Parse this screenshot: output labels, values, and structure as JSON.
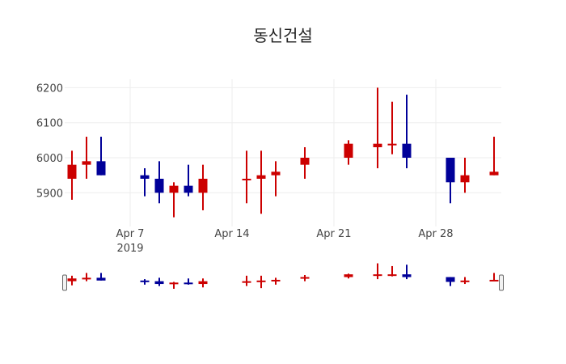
{
  "title": "동신건설",
  "colors": {
    "increasing": "#cc0000",
    "decreasing": "#000099",
    "grid": "#eeeeee"
  },
  "chart_data": {
    "type": "candlestick",
    "title": "동신건설",
    "xlabel": "",
    "ylabel": "",
    "ylim": [
      5810,
      6220
    ],
    "yticks": [
      5900,
      6000,
      6100,
      6200
    ],
    "xticks": [
      {
        "date": "2019-04-07",
        "label": "Apr 7",
        "sublabel": "2019"
      },
      {
        "date": "2019-04-14",
        "label": "Apr 14"
      },
      {
        "date": "2019-04-21",
        "label": "Apr 21"
      },
      {
        "date": "2019-04-28",
        "label": "Apr 28"
      }
    ],
    "grid": true,
    "rangeslider": true,
    "series": [
      {
        "date": "2019-04-03",
        "open": 5940,
        "high": 6020,
        "low": 5880,
        "close": 5980
      },
      {
        "date": "2019-04-04",
        "open": 5980,
        "high": 6060,
        "low": 5940,
        "close": 5990
      },
      {
        "date": "2019-04-05",
        "open": 5990,
        "high": 6060,
        "low": 5950,
        "close": 5950
      },
      {
        "date": "2019-04-08",
        "open": 5950,
        "high": 5970,
        "low": 5890,
        "close": 5940
      },
      {
        "date": "2019-04-09",
        "open": 5940,
        "high": 5990,
        "low": 5870,
        "close": 5900
      },
      {
        "date": "2019-04-10",
        "open": 5900,
        "high": 5930,
        "low": 5830,
        "close": 5920
      },
      {
        "date": "2019-04-11",
        "open": 5920,
        "high": 5980,
        "low": 5890,
        "close": 5900
      },
      {
        "date": "2019-04-12",
        "open": 5900,
        "high": 5980,
        "low": 5850,
        "close": 5940
      },
      {
        "date": "2019-04-15",
        "open": 5940,
        "high": 6020,
        "low": 5870,
        "close": 5940
      },
      {
        "date": "2019-04-16",
        "open": 5940,
        "high": 6020,
        "low": 5840,
        "close": 5950
      },
      {
        "date": "2019-04-17",
        "open": 5950,
        "high": 5990,
        "low": 5890,
        "close": 5960
      },
      {
        "date": "2019-04-19",
        "open": 5980,
        "high": 6030,
        "low": 5940,
        "close": 6000
      },
      {
        "date": "2019-04-22",
        "open": 6000,
        "high": 6050,
        "low": 5980,
        "close": 6040
      },
      {
        "date": "2019-04-24",
        "open": 6030,
        "high": 6200,
        "low": 5970,
        "close": 6040
      },
      {
        "date": "2019-04-25",
        "open": 6040,
        "high": 6160,
        "low": 6010,
        "close": 6040
      },
      {
        "date": "2019-04-26",
        "open": 6040,
        "high": 6180,
        "low": 5970,
        "close": 6000
      },
      {
        "date": "2019-04-29",
        "open": 6000,
        "high": 6000,
        "low": 5870,
        "close": 5930
      },
      {
        "date": "2019-04-30",
        "open": 5930,
        "high": 6000,
        "low": 5900,
        "close": 5950
      },
      {
        "date": "2019-05-02",
        "open": 5950,
        "high": 6060,
        "low": 5950,
        "close": 5960
      }
    ]
  }
}
